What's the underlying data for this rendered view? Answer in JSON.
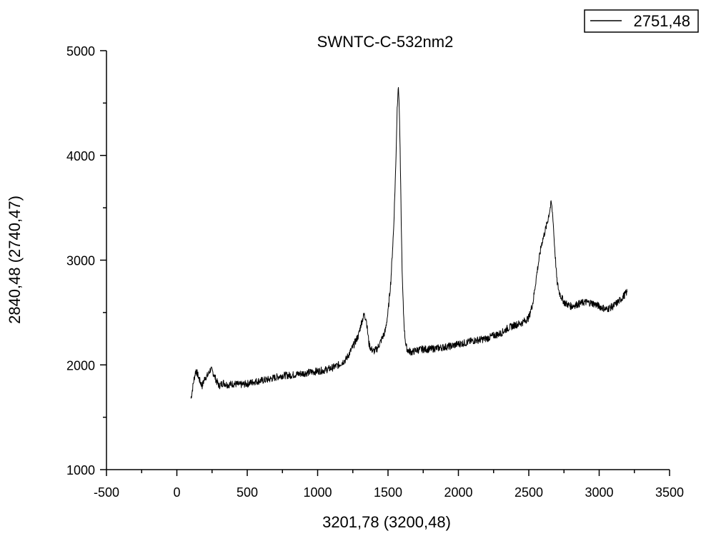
{
  "chart_data": {
    "type": "line",
    "title": "SWNTC-C-532nm2",
    "xlabel": "3201,78 (3200,48)",
    "ylabel": "2840,48 (2740,47)",
    "xlim": [
      -500,
      3500
    ],
    "ylim": [
      1000,
      5000
    ],
    "x_ticks": [
      -500,
      0,
      500,
      1000,
      1500,
      2000,
      2500,
      3000,
      3500
    ],
    "y_ticks": [
      1000,
      2000,
      3000,
      4000,
      5000
    ],
    "x_tick_labels": [
      "-500",
      "0",
      "500",
      "1000",
      "1500",
      "2000",
      "2500",
      "3000",
      "3500"
    ],
    "y_tick_labels": [
      "1000",
      "2000",
      "3000",
      "4000",
      "5000"
    ],
    "legend": {
      "position": "top-right",
      "entries": [
        "2751,48"
      ]
    },
    "grid": false,
    "line_color": "#000000",
    "series": [
      {
        "name": "2751,48",
        "x": [
          100,
          110,
          120,
          135,
          150,
          165,
          180,
          200,
          220,
          240,
          260,
          280,
          300,
          330,
          360,
          400,
          450,
          500,
          550,
          600,
          650,
          700,
          750,
          800,
          850,
          900,
          950,
          1000,
          1050,
          1100,
          1150,
          1200,
          1230,
          1260,
          1290,
          1310,
          1330,
          1345,
          1355,
          1365,
          1380,
          1400,
          1420,
          1440,
          1460,
          1480,
          1500,
          1520,
          1540,
          1555,
          1565,
          1572,
          1578,
          1584,
          1590,
          1596,
          1602,
          1610,
          1618,
          1628,
          1640,
          1655,
          1670,
          1700,
          1750,
          1800,
          1850,
          1900,
          1950,
          2000,
          2050,
          2100,
          2150,
          2200,
          2250,
          2300,
          2350,
          2400,
          2450,
          2500,
          2530,
          2560,
          2590,
          2610,
          2630,
          2645,
          2660,
          2672,
          2680,
          2690,
          2700,
          2715,
          2730,
          2750,
          2770,
          2800,
          2850,
          2900,
          2950,
          3000,
          3050,
          3100,
          3150,
          3200
        ],
        "y": [
          1680,
          1760,
          1850,
          1950,
          1900,
          1840,
          1800,
          1880,
          1900,
          1960,
          1920,
          1850,
          1800,
          1830,
          1810,
          1820,
          1810,
          1820,
          1840,
          1850,
          1860,
          1880,
          1900,
          1900,
          1910,
          1920,
          1930,
          1940,
          1950,
          1970,
          2000,
          2050,
          2120,
          2200,
          2280,
          2400,
          2480,
          2440,
          2320,
          2200,
          2150,
          2130,
          2150,
          2200,
          2260,
          2320,
          2500,
          2800,
          3300,
          3900,
          4450,
          4650,
          4550,
          4200,
          3700,
          3200,
          2800,
          2500,
          2300,
          2180,
          2140,
          2130,
          2120,
          2140,
          2150,
          2150,
          2160,
          2170,
          2180,
          2200,
          2210,
          2230,
          2240,
          2250,
          2280,
          2300,
          2350,
          2380,
          2400,
          2450,
          2600,
          2900,
          3150,
          3250,
          3350,
          3450,
          3550,
          3400,
          3200,
          3000,
          2800,
          2700,
          2650,
          2600,
          2580,
          2560,
          2580,
          2600,
          2590,
          2560,
          2530,
          2560,
          2620,
          2700
        ]
      }
    ]
  }
}
